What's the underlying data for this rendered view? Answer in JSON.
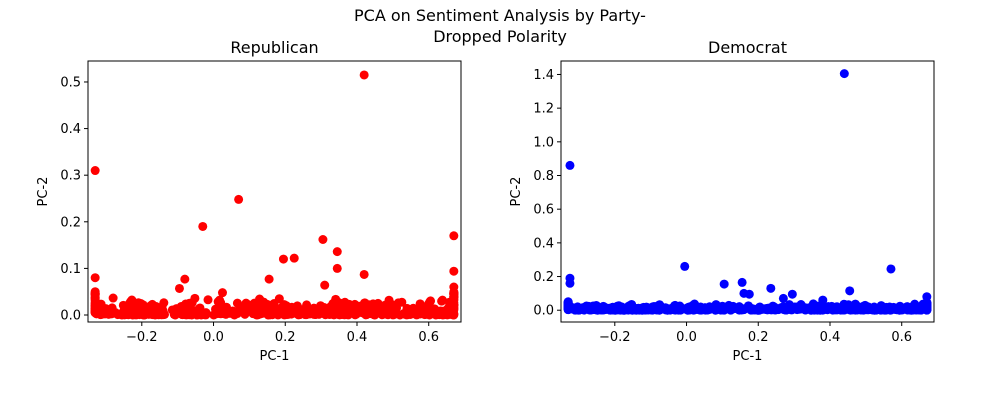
{
  "suptitle_line1": "PCA on Sentiment Analysis by Party-",
  "suptitle_line2": "Dropped Polarity",
  "chart_data": [
    {
      "type": "scatter",
      "title": "Republican",
      "xlabel": "PC-1",
      "ylabel": "PC-2",
      "color": "#ff0000",
      "xlim": [
        -0.35,
        0.69
      ],
      "ylim": [
        -0.015,
        0.545
      ],
      "xticks": [
        -0.2,
        0.0,
        0.2,
        0.4,
        0.6
      ],
      "xtick_labels": [
        "−0.2",
        "0.0",
        "0.2",
        "0.4",
        "0.6"
      ],
      "yticks": [
        0.0,
        0.1,
        0.2,
        0.3,
        0.4,
        0.5
      ],
      "ytick_labels": [
        "0.0",
        "0.1",
        "0.2",
        "0.3",
        "0.4",
        "0.5"
      ],
      "outliers": [
        [
          -0.33,
          0.31
        ],
        [
          0.42,
          0.515
        ],
        [
          -0.03,
          0.19
        ],
        [
          0.07,
          0.248
        ],
        [
          0.195,
          0.12
        ],
        [
          0.225,
          0.122
        ],
        [
          0.305,
          0.162
        ],
        [
          0.345,
          0.136
        ],
        [
          0.345,
          0.1
        ],
        [
          0.67,
          0.17
        ],
        [
          0.67,
          0.094
        ],
        [
          0.42,
          0.087
        ],
        [
          0.155,
          0.077
        ],
        [
          -0.08,
          0.077
        ],
        [
          -0.095,
          0.057
        ],
        [
          -0.33,
          0.08
        ],
        [
          0.025,
          0.048
        ],
        [
          0.31,
          0.064
        ],
        [
          0.67,
          0.06
        ]
      ],
      "band_top_y": 0.04
    },
    {
      "type": "scatter",
      "title": "Democrat",
      "xlabel": "PC-1",
      "ylabel": "PC-2",
      "color": "#0000ff",
      "xlim": [
        -0.35,
        0.69
      ],
      "ylim": [
        -0.07,
        1.48
      ],
      "xticks": [
        -0.2,
        0.0,
        0.2,
        0.4,
        0.6
      ],
      "xtick_labels": [
        "−0.2",
        "0.0",
        "0.2",
        "0.4",
        "0.6"
      ],
      "yticks": [
        0.0,
        0.2,
        0.4,
        0.6,
        0.8,
        1.0,
        1.2,
        1.4
      ],
      "ytick_labels": [
        "0.0",
        "0.2",
        "0.4",
        "0.6",
        "0.8",
        "1.0",
        "1.2",
        "1.4"
      ],
      "outliers": [
        [
          0.44,
          1.405
        ],
        [
          -0.325,
          0.86
        ],
        [
          -0.005,
          0.26
        ],
        [
          0.57,
          0.245
        ],
        [
          0.105,
          0.155
        ],
        [
          0.155,
          0.165
        ],
        [
          0.235,
          0.13
        ],
        [
          0.455,
          0.115
        ],
        [
          0.16,
          0.1
        ],
        [
          0.175,
          0.095
        ],
        [
          0.295,
          0.095
        ],
        [
          0.27,
          0.07
        ],
        [
          -0.325,
          0.19
        ],
        [
          -0.325,
          0.16
        ],
        [
          0.67,
          0.08
        ],
        [
          0.38,
          0.06
        ]
      ],
      "band_top_y": 0.04
    }
  ]
}
